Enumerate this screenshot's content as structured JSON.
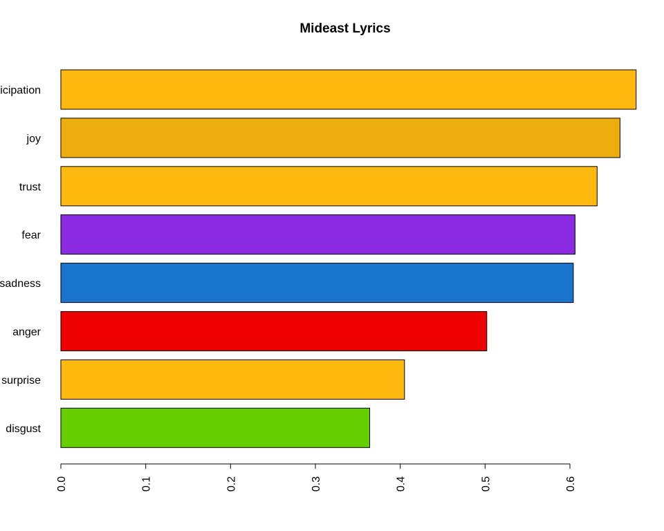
{
  "chart_data": {
    "type": "bar",
    "orientation": "horizontal",
    "title": "Mideast Lyrics",
    "xlabel": "",
    "ylabel": "",
    "xlim": [
      0,
      0.68
    ],
    "ticks": [
      "0.0",
      "0.1",
      "0.2",
      "0.3",
      "0.4",
      "0.5",
      "0.6"
    ],
    "tick_values": [
      0.0,
      0.1,
      0.2,
      0.3,
      0.4,
      0.5,
      0.6
    ],
    "grid": false,
    "legend": "none",
    "categories": [
      "anticipation",
      "joy",
      "trust",
      "fear",
      "sadness",
      "anger",
      "surprise",
      "disgust"
    ],
    "values": [
      0.678,
      0.659,
      0.632,
      0.606,
      0.604,
      0.502,
      0.405,
      0.364
    ],
    "colors": [
      "#FFB90F",
      "#EEAD0E",
      "#FFB90F",
      "#8A2BE2",
      "#1874CD",
      "#EE0000",
      "#FFB90F",
      "#66CD00"
    ]
  }
}
